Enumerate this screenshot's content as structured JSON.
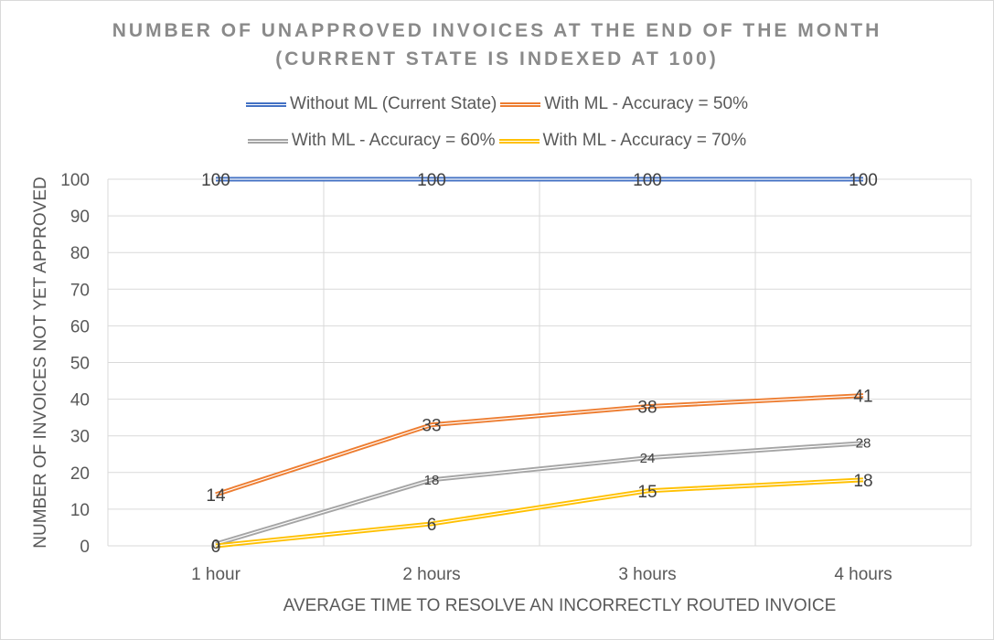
{
  "chart_data": {
    "type": "line",
    "title_line1": "NUMBER OF UNAPPROVED INVOICES AT THE END OF THE MONTH",
    "title_line2": "(CURRENT STATE IS INDEXED AT 100)",
    "xlabel": "AVERAGE TIME TO RESOLVE AN INCORRECTLY ROUTED INVOICE",
    "ylabel": "NUMBER OF INVOICES NOT YET APPROVED",
    "categories": [
      "1 hour",
      "2 hours",
      "3 hours",
      "4 hours"
    ],
    "ylim": [
      0,
      100
    ],
    "yticks": [
      0,
      10,
      20,
      30,
      40,
      50,
      60,
      70,
      80,
      90,
      100
    ],
    "grid": true,
    "legend_position": "top",
    "series": [
      {
        "name": "Without ML (Current State)",
        "values": [
          100,
          100,
          100,
          100
        ],
        "labels": [
          "100",
          "100",
          "100",
          "100"
        ],
        "color": "#4472c4"
      },
      {
        "name": "With ML - Accuracy = 50%",
        "values": [
          14,
          33,
          38,
          41
        ],
        "labels": [
          "14",
          "33",
          "38",
          "41"
        ],
        "color": "#ed7d31"
      },
      {
        "name": "With ML - Accuracy = 60%",
        "values": [
          0.5,
          18,
          24,
          28
        ],
        "labels": [
          "0",
          "18",
          "24",
          "28"
        ],
        "color": "#a5a5a5"
      },
      {
        "name": "With ML - Accuracy = 70%",
        "values": [
          0,
          6,
          15,
          18
        ],
        "labels": [
          "0",
          "6",
          "15",
          "18"
        ],
        "color": "#ffc000"
      }
    ]
  }
}
